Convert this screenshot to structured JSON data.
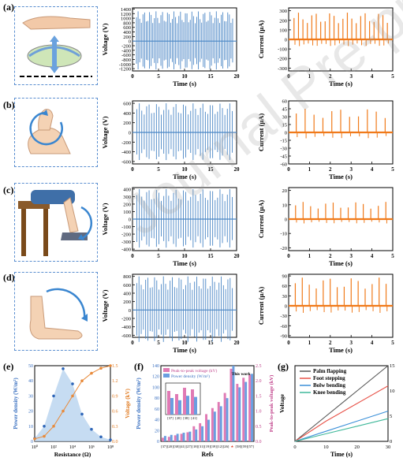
{
  "panel_labels": [
    "(a)",
    "(b)",
    "(c)",
    "(d)",
    "(e)",
    "(f)",
    "(g)"
  ],
  "watermark": "Journal Pre-proof",
  "colors": {
    "voltage_blue": "#4a86c5",
    "current_orange": "#f07a1a",
    "dash_blue": "#5b8fd0"
  },
  "rows": [
    {
      "id": "a",
      "voltage": {
        "ylabel": "Voltage (V)",
        "xlabel": "Time (s)",
        "ylim": [
          -1300,
          1450
        ],
        "yticks": [
          "-1200",
          "-1000",
          "-800",
          "-600",
          "-400",
          "-200",
          "0",
          "200",
          "400",
          "600",
          "800",
          "1000",
          "1200",
          "1400"
        ],
        "xticks": [
          "0",
          "5",
          "10",
          "15",
          "20"
        ],
        "amp": 1300,
        "n": 60
      },
      "current": {
        "ylabel": "Current (μA)",
        "xlabel": "Time (s)",
        "ylim": [
          -330,
          330
        ],
        "yticks": [
          "-300",
          "-200",
          "-100",
          "0",
          "100",
          "200",
          "300"
        ],
        "xticks": [
          "0",
          "1",
          "2",
          "3",
          "4",
          "5"
        ],
        "n": 22,
        "amp": 280
      }
    },
    {
      "id": "b",
      "voltage": {
        "ylabel": "Voltage (V)",
        "xlabel": "Time (s)",
        "ylim": [
          -650,
          650
        ],
        "yticks": [
          "-600",
          "-400",
          "-200",
          "0",
          "200",
          "400",
          "600"
        ],
        "xticks": [
          "0",
          "5",
          "10",
          "15",
          "20"
        ],
        "amp": 600,
        "n": 40
      },
      "current": {
        "ylabel": "Current (μA)",
        "xlabel": "Time (s)",
        "ylim": [
          -60,
          60
        ],
        "yticks": [
          "-60",
          "-45",
          "-30",
          "-15",
          "0",
          "15",
          "30",
          "45",
          "60"
        ],
        "xticks": [
          "0",
          "1",
          "2",
          "3",
          "4",
          "5"
        ],
        "n": 11,
        "amp": 45
      }
    },
    {
      "id": "c",
      "voltage": {
        "ylabel": "Voltage (V)",
        "xlabel": "Time (s)",
        "ylim": [
          -420,
          420
        ],
        "yticks": [
          "-400",
          "-300",
          "-200",
          "-100",
          "0",
          "100",
          "200",
          "300",
          "400"
        ],
        "xticks": [
          "0",
          "5",
          "10",
          "15",
          "20"
        ],
        "amp": 400,
        "n": 40
      },
      "current": {
        "ylabel": "Current (μA)",
        "xlabel": "Time (s)",
        "ylim": [
          -22,
          22
        ],
        "yticks": [
          "-20",
          "-10",
          "0",
          "10",
          "20"
        ],
        "xticks": [
          "0",
          "1",
          "2",
          "3",
          "4",
          "5"
        ],
        "n": 13,
        "amp": 12
      }
    },
    {
      "id": "d",
      "voltage": {
        "ylabel": "Voltage (V)",
        "xlabel": "Time (s)",
        "ylim": [
          -650,
          850
        ],
        "yticks": [
          "-600",
          "-400",
          "-200",
          "0",
          "200",
          "400",
          "600",
          "800"
        ],
        "xticks": [
          "0",
          "5",
          "10",
          "15",
          "20"
        ],
        "amp": 800,
        "n": 44
      },
      "current": {
        "ylabel": "Current (μA)",
        "xlabel": "Time (s)",
        "ylim": [
          -95,
          95
        ],
        "yticks": [
          "-90",
          "-60",
          "-30",
          "0",
          "30",
          "60",
          "90"
        ],
        "xticks": [
          "0",
          "1",
          "2",
          "3",
          "4",
          "5"
        ],
        "n": 14,
        "amp": 85
      }
    }
  ],
  "chart_data": [
    {
      "type": "scatter",
      "panel": "e",
      "xlabel": "Resistance (Ω)",
      "ylabel": "Power density (W/m²)",
      "ylabel2": "Voltage (kV)",
      "xticks": [
        "10⁰",
        "10²",
        "10⁴",
        "10⁶",
        "10⁸"
      ],
      "yticks": [
        "0",
        "10",
        "20",
        "30",
        "40",
        "50"
      ],
      "y2ticks": [
        "0.0",
        "0.3",
        "0.6",
        "0.9",
        "1.2",
        "1.5"
      ],
      "series": [
        {
          "name": "Power density",
          "x": [
            0,
            1,
            2,
            3,
            4,
            5,
            6,
            7,
            8
          ],
          "values": [
            2,
            10,
            30,
            48,
            38,
            18,
            8,
            3,
            1
          ]
        },
        {
          "name": "Voltage",
          "x": [
            0,
            1,
            2,
            3,
            4,
            5,
            6,
            7,
            8
          ],
          "values": [
            0.05,
            0.1,
            0.3,
            0.6,
            0.9,
            1.2,
            1.35,
            1.45,
            1.5
          ]
        }
      ]
    },
    {
      "type": "bar",
      "panel": "f",
      "xlabel": "Refs",
      "ylabel": "Power density (W/m²)",
      "ylabel2": "Peak-to-peak voltage (kV)",
      "legend": [
        "Peak-to-peak voltage (kV)",
        "Power density (W/m²)"
      ],
      "annotation": "This work",
      "yticks": [
        "0",
        "20",
        "40",
        "60",
        "80",
        "100",
        "120",
        "140"
      ],
      "y2ticks": [
        "0.0",
        "0.5",
        "1.0",
        "1.5",
        "2.0",
        "2.5"
      ],
      "categories": [
        "[37]",
        "[20]",
        "[38]",
        "[41]",
        "[27]",
        "[18]",
        "[31]",
        "[19]",
        "[39]",
        "[12]",
        "[26]",
        "★",
        "[58]",
        "[59]",
        "[57]"
      ],
      "series": [
        {
          "name": "Peak-to-peak voltage (kV)",
          "values": [
            0.12,
            0.15,
            0.2,
            0.25,
            0.3,
            0.5,
            0.6,
            0.9,
            1.1,
            1.3,
            1.6,
            2.4,
            1.9,
            2.1,
            2.2
          ]
        },
        {
          "name": "Power density (W/m²)",
          "values": [
            10,
            12,
            14,
            16,
            18,
            22,
            28,
            40,
            55,
            65,
            80,
            140,
            100,
            110,
            125
          ]
        }
      ],
      "inset": {
        "categories": [
          "[37]",
          "[20]",
          "[38]",
          "[41]"
        ],
        "ylabel": "Power density (W/m²)",
        "ylabel2": "Peak-to-peak voltage (kV)"
      }
    },
    {
      "type": "line",
      "panel": "g",
      "xlabel": "Time (s)",
      "ylabel": "Voltage",
      "xticks": [
        "0",
        "10",
        "20",
        "30"
      ],
      "yticks": [
        "0",
        "5",
        "10",
        "15"
      ],
      "series": [
        {
          "name": "Palm flapping",
          "color": "#555555",
          "x": [
            0,
            10,
            20,
            30
          ],
          "values": [
            0,
            5,
            10,
            15
          ]
        },
        {
          "name": "Foot stepping",
          "color": "#e8544a",
          "x": [
            0,
            10,
            20,
            30
          ],
          "values": [
            0,
            4,
            7.5,
            11
          ]
        },
        {
          "name": "Bolw bending",
          "color": "#3a8fd8",
          "x": [
            0,
            10,
            20,
            30
          ],
          "values": [
            0,
            2,
            4,
            6
          ]
        },
        {
          "name": "Knee bending",
          "color": "#3fb89a",
          "x": [
            0,
            10,
            20,
            30
          ],
          "values": [
            0,
            1.5,
            3,
            4.5
          ]
        }
      ]
    }
  ]
}
